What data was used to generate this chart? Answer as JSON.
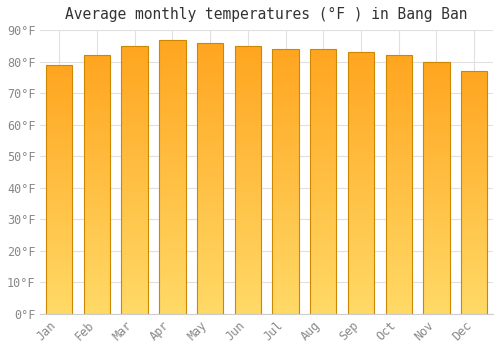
{
  "title": "Average monthly temperatures (°F ) in Bang Ban",
  "months": [
    "Jan",
    "Feb",
    "Mar",
    "Apr",
    "May",
    "Jun",
    "Jul",
    "Aug",
    "Sep",
    "Oct",
    "Nov",
    "Dec"
  ],
  "values": [
    79,
    82,
    85,
    87,
    86,
    85,
    84,
    84,
    83,
    82,
    80,
    77
  ],
  "bar_color_light": "#FFD966",
  "bar_color_dark": "#FFA520",
  "bar_edge_color": "#CC8800",
  "ylim": [
    0,
    90
  ],
  "yticks": [
    0,
    10,
    20,
    30,
    40,
    50,
    60,
    70,
    80,
    90
  ],
  "ytick_labels": [
    "0°F",
    "10°F",
    "20°F",
    "30°F",
    "40°F",
    "50°F",
    "60°F",
    "70°F",
    "80°F",
    "90°F"
  ],
  "background_color": "#FFFFFF",
  "grid_color": "#E0E0E0",
  "title_fontsize": 10.5,
  "tick_fontsize": 8.5,
  "bar_width": 0.7,
  "n_gradient_steps": 100
}
